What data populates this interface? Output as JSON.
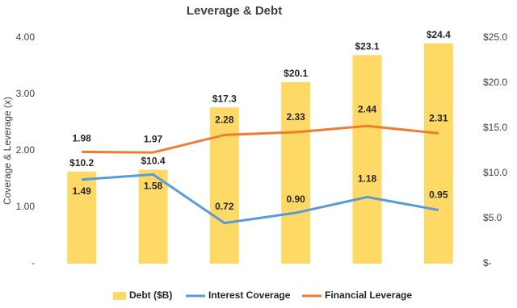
{
  "chart_data": {
    "type": "combo",
    "title": "Leverage & Debt",
    "y_label": "Coverage & Leverage (x)",
    "categories": [
      null,
      null,
      null,
      null,
      null,
      null
    ],
    "series": [
      {
        "name": "Debt ($B)",
        "type": "bar",
        "axis": "y2",
        "color": "#FFD966",
        "values": [
          10.2,
          10.4,
          17.3,
          20.1,
          23.1,
          24.4
        ],
        "value_labels": [
          "$10.2",
          "$10.4",
          "$17.3",
          "$20.1",
          "$23.1",
          "$24.4"
        ]
      },
      {
        "name": "Interest Coverage",
        "type": "line",
        "color": "#5B9BD5",
        "values": [
          1.49,
          1.58,
          0.72,
          0.9,
          1.18,
          0.95
        ],
        "value_labels": [
          "1.49",
          "1.58",
          "0.72",
          "0.90",
          "1.18",
          "0.95"
        ]
      },
      {
        "name": "Financial Leverage",
        "type": "line",
        "color": "#ED7D31",
        "values": [
          1.98,
          1.97,
          2.28,
          2.33,
          2.44,
          2.31
        ],
        "value_labels": [
          "1.98",
          "1.97",
          "2.28",
          "2.33",
          "2.44",
          "2.31"
        ]
      }
    ],
    "ylim": [
      0,
      4
    ],
    "yticks": [
      {
        "value": 0,
        "label": "-"
      },
      {
        "value": 1,
        "label": "1.00"
      },
      {
        "value": 2,
        "label": "2.00"
      },
      {
        "value": 3,
        "label": "3.00"
      },
      {
        "value": 4,
        "label": "4.00"
      }
    ],
    "y2lim": [
      0,
      25
    ],
    "y2ticks": [
      {
        "value": 0,
        "label": "$-"
      },
      {
        "value": 5,
        "label": "$5.0"
      },
      {
        "value": 10,
        "label": "$10.0"
      },
      {
        "value": 15,
        "label": "$15.0"
      },
      {
        "value": 20,
        "label": "$20.0"
      },
      {
        "value": 25,
        "label": "$25.0"
      }
    ],
    "grid": false,
    "legend": "bottom"
  }
}
